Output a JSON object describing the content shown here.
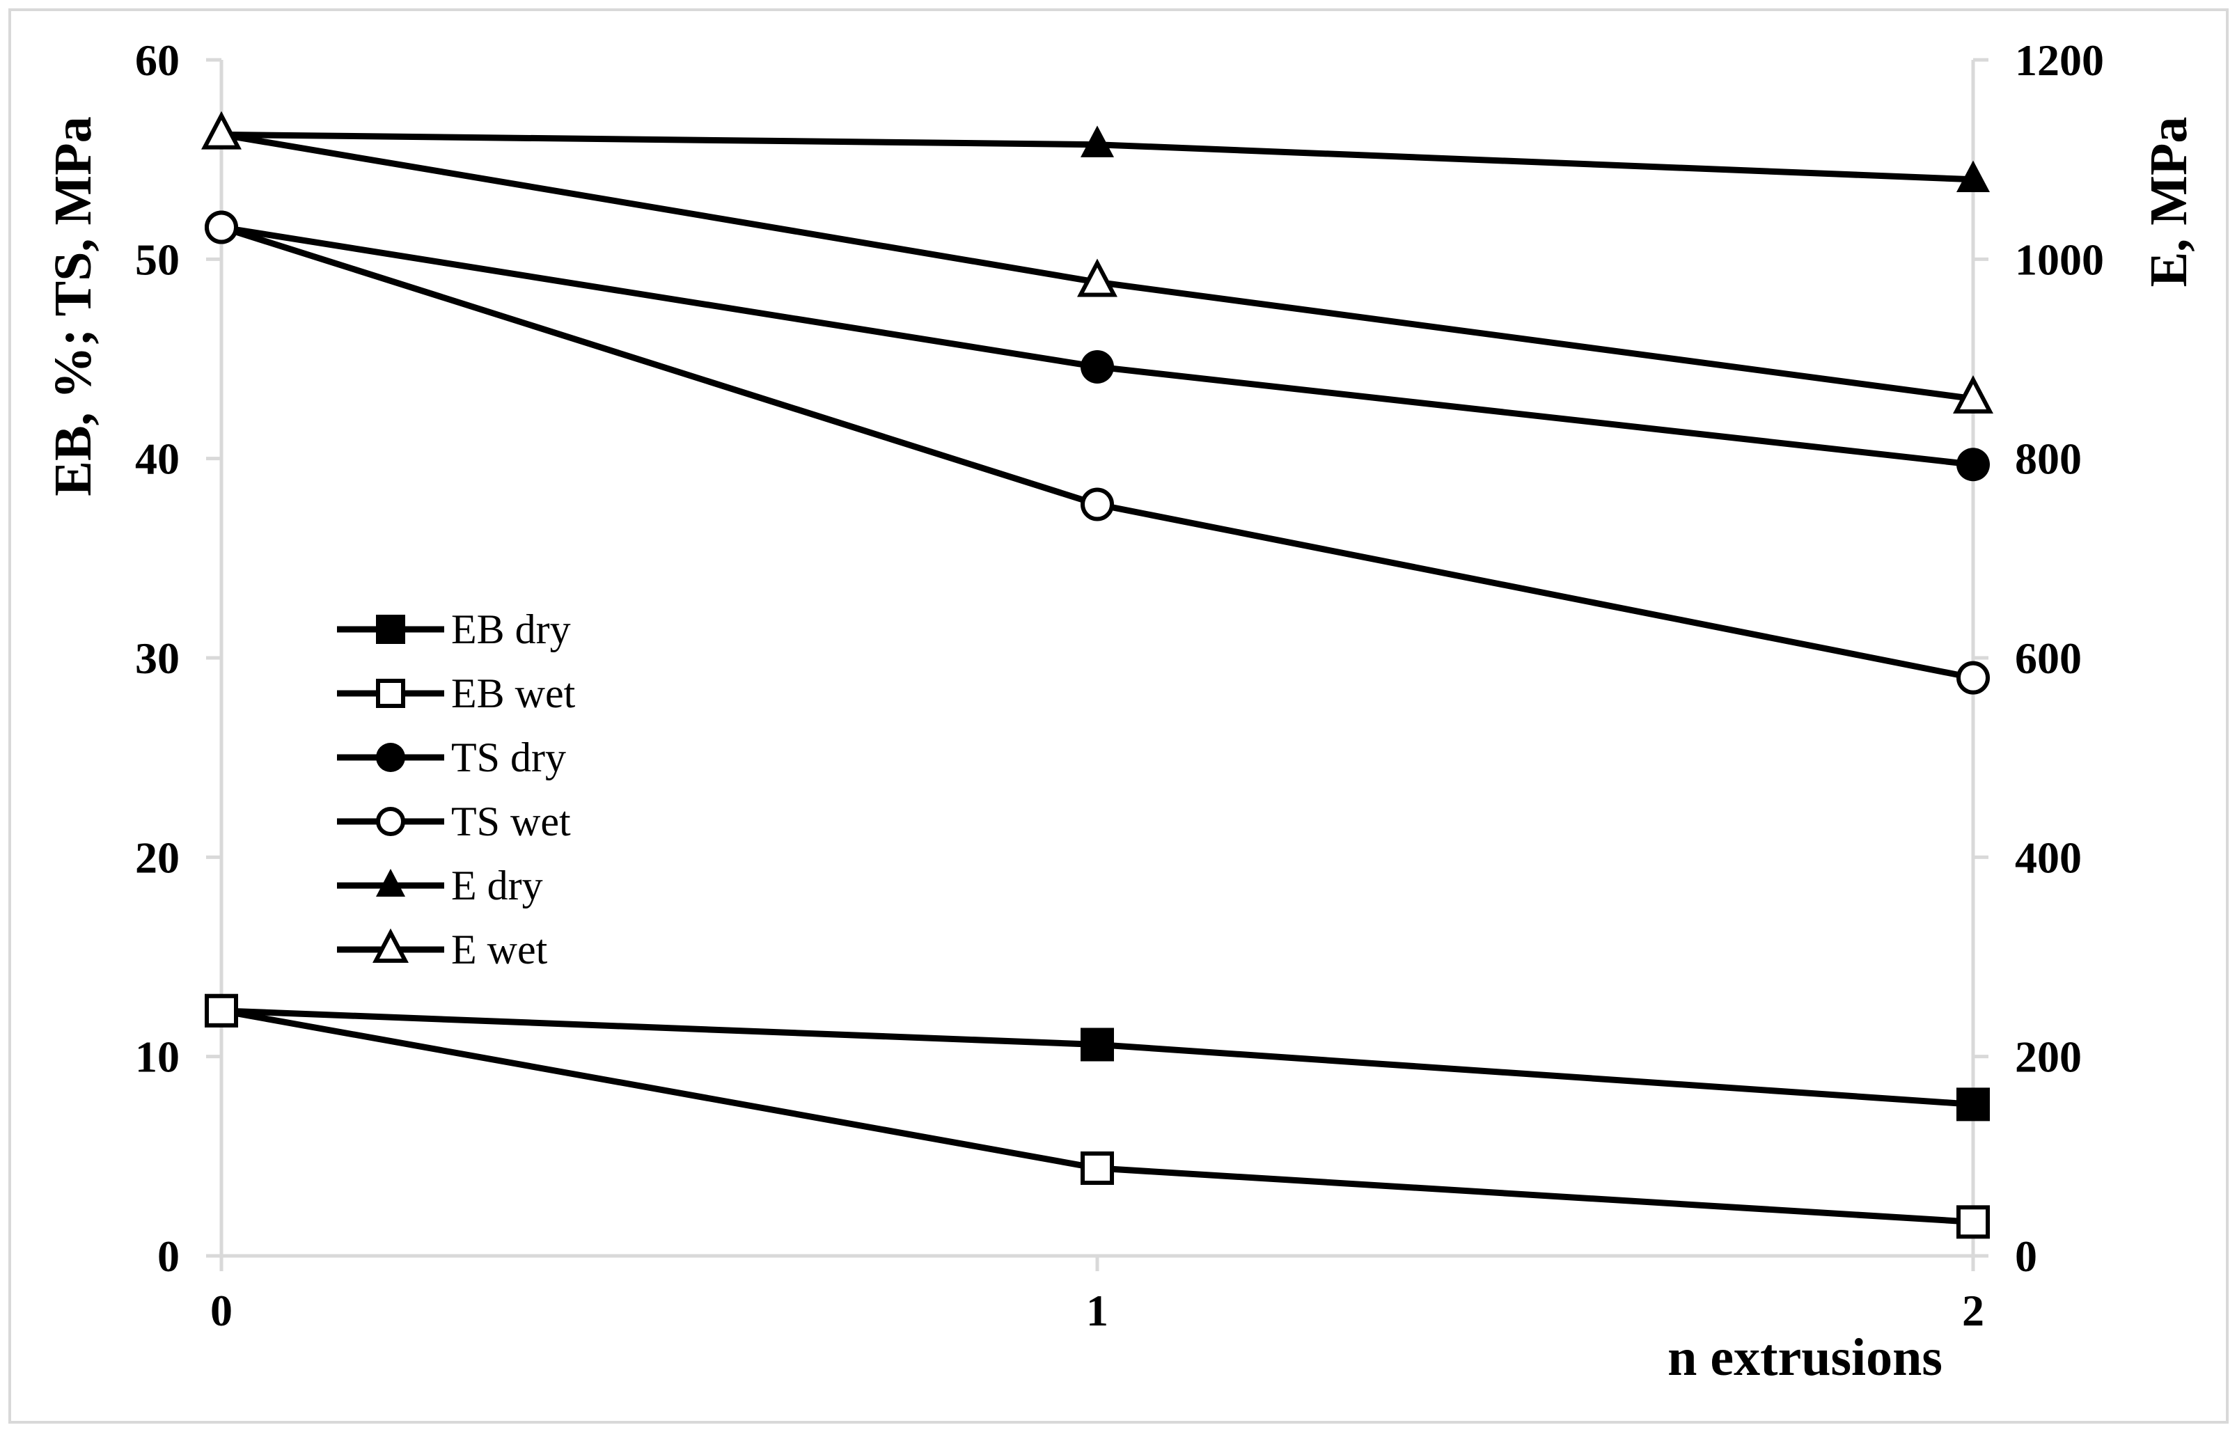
{
  "chart_data": {
    "type": "line",
    "x": [
      0,
      1,
      2
    ],
    "xlabel": "n extrusions",
    "ylabel": "EB, %; TS, MPa",
    "y2label": "E, MPa",
    "xlim": [
      0,
      2
    ],
    "ylim": [
      0,
      60
    ],
    "y2lim": [
      0,
      1200
    ],
    "xticks": [
      "0",
      "1",
      "2"
    ],
    "yticks": [
      "0",
      "10",
      "20",
      "30",
      "40",
      "50",
      "60"
    ],
    "y2ticks": [
      "0",
      "200",
      "400",
      "600",
      "800",
      "1000",
      "1200"
    ],
    "grid": false,
    "legend_position": "center-left",
    "series": [
      {
        "name": "EB dry",
        "axis": "left",
        "marker": "square-filled",
        "values": [
          12.3,
          10.6,
          7.6
        ]
      },
      {
        "name": "EB wet",
        "axis": "left",
        "marker": "square-open",
        "values": [
          12.3,
          4.4,
          1.7
        ]
      },
      {
        "name": "TS dry",
        "axis": "left",
        "marker": "circle-filled",
        "values": [
          51.6,
          44.6,
          39.7
        ]
      },
      {
        "name": "TS wet",
        "axis": "left",
        "marker": "circle-open",
        "values": [
          51.6,
          37.7,
          29.0
        ]
      },
      {
        "name": "E dry",
        "axis": "right",
        "marker": "triangle-filled",
        "values": [
          1125,
          1115,
          1080
        ]
      },
      {
        "name": "E wet",
        "axis": "right",
        "marker": "triangle-open",
        "values": [
          1125,
          977,
          860
        ]
      }
    ]
  }
}
